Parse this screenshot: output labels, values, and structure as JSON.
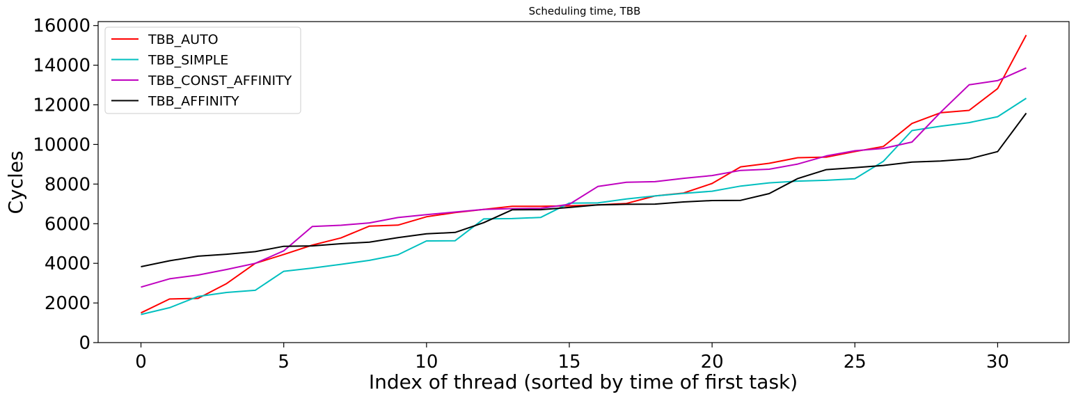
{
  "chart_data": {
    "type": "line",
    "title": "Scheduling time, TBB",
    "xlabel": "Index of thread (sorted by time of first task)",
    "ylabel": "Cycles",
    "xlim": [
      -1.5,
      32.5
    ],
    "ylim": [
      0,
      16200
    ],
    "xticks": [
      0,
      5,
      10,
      15,
      20,
      25,
      30
    ],
    "yticks": [
      0,
      2000,
      4000,
      6000,
      8000,
      10000,
      12000,
      14000,
      16000
    ],
    "legend_position": "upper-left",
    "grid": false,
    "x": [
      0,
      1,
      2,
      3,
      4,
      5,
      6,
      7,
      8,
      9,
      10,
      11,
      12,
      13,
      14,
      15,
      16,
      17,
      18,
      19,
      20,
      21,
      22,
      23,
      24,
      25,
      26,
      27,
      28,
      29,
      30,
      31
    ],
    "series": [
      {
        "name": "TBB_AUTO",
        "color": "#ff0000",
        "values": [
          1500,
          2200,
          2230,
          2980,
          4000,
          4450,
          4920,
          5280,
          5880,
          5930,
          6350,
          6560,
          6720,
          6880,
          6880,
          6900,
          6950,
          7020,
          7400,
          7550,
          8030,
          8870,
          9050,
          9330,
          9360,
          9640,
          9900,
          11060,
          11600,
          11720,
          12820,
          15520
        ]
      },
      {
        "name": "TBB_SIMPLE",
        "color": "#00bfbf",
        "values": [
          1420,
          1760,
          2330,
          2530,
          2640,
          3600,
          3760,
          3950,
          4150,
          4430,
          5130,
          5140,
          6240,
          6260,
          6320,
          7040,
          7050,
          7250,
          7400,
          7530,
          7640,
          7900,
          8060,
          8150,
          8190,
          8270,
          9150,
          10700,
          10920,
          11100,
          11400,
          12330
        ]
      },
      {
        "name": "TBB_CONST_AFFINITY",
        "color": "#bf00bf",
        "values": [
          2800,
          3220,
          3410,
          3690,
          4000,
          4630,
          5860,
          5920,
          6040,
          6310,
          6460,
          6590,
          6720,
          6760,
          6780,
          6980,
          7880,
          8090,
          8120,
          8290,
          8430,
          8690,
          8750,
          9010,
          9420,
          9680,
          9800,
          10120,
          11620,
          13010,
          13220,
          13860
        ]
      },
      {
        "name": "TBB_AFFINITY",
        "color": "#000000",
        "values": [
          3830,
          4130,
          4360,
          4460,
          4590,
          4860,
          4880,
          4990,
          5070,
          5300,
          5490,
          5560,
          6050,
          6700,
          6710,
          6820,
          6950,
          6980,
          6990,
          7100,
          7170,
          7180,
          7520,
          8280,
          8730,
          8830,
          8940,
          9110,
          9160,
          9270,
          9640,
          11580
        ]
      }
    ]
  }
}
